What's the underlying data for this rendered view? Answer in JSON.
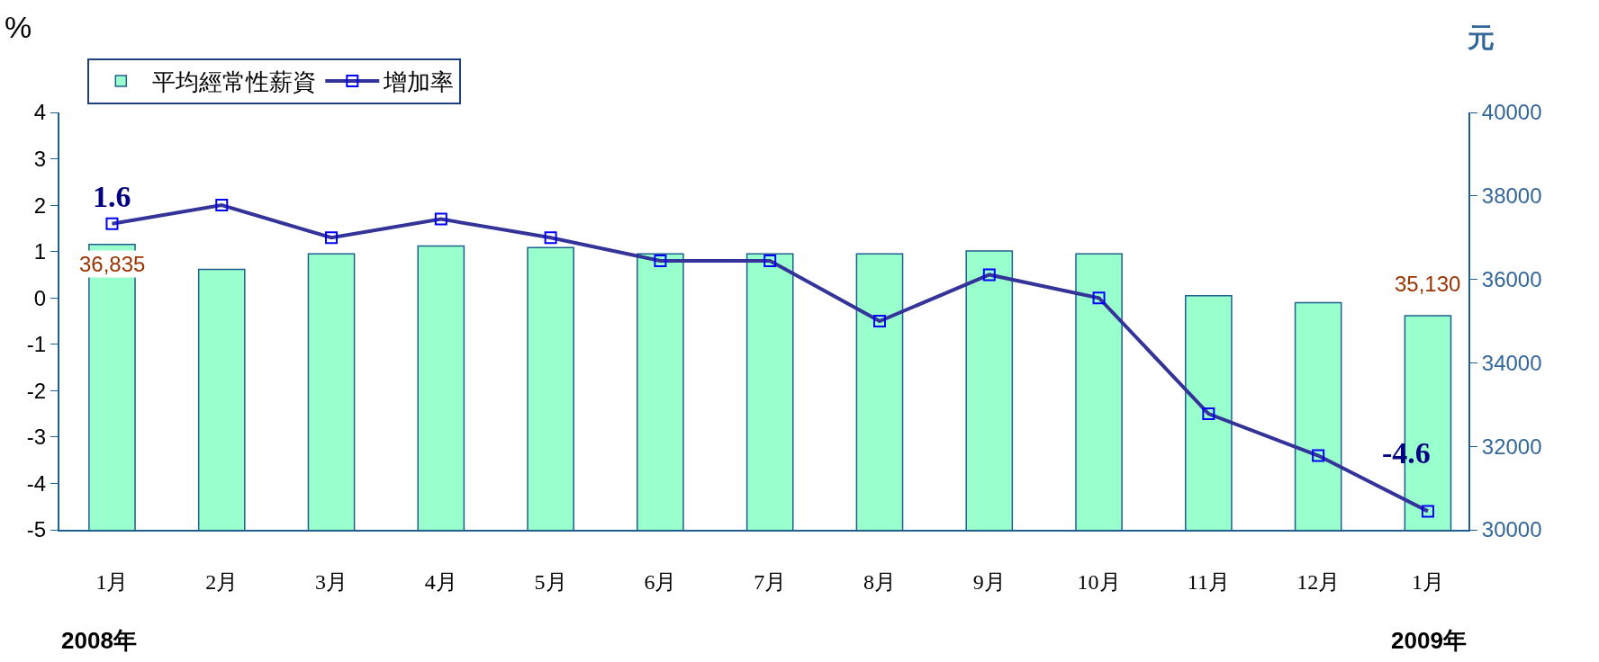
{
  "chart_data": {
    "type": "bar",
    "categories": [
      "1月",
      "2月",
      "3月",
      "4月",
      "5月",
      "6月",
      "7月",
      "8月",
      "9月",
      "10月",
      "11月",
      "12月",
      "1月"
    ],
    "ylabel": "%",
    "y2label": "元",
    "ylim": [
      -5,
      4
    ],
    "yticks": [
      -5,
      -4,
      -3,
      -2,
      -1,
      0,
      1,
      2,
      3,
      4
    ],
    "y2lim": [
      30000,
      40000
    ],
    "y2ticks": [
      30000,
      32000,
      34000,
      36000,
      38000,
      40000
    ],
    "series": [
      {
        "name": "平均經常性薪資",
        "axis": "y2",
        "color": "#99ffcc",
        "values": [
          36835,
          36240,
          36610,
          36800,
          36760,
          36610,
          36610,
          36610,
          36680,
          36610,
          35610,
          35440,
          35130
        ],
        "value_labels": [
          "36,835",
          null,
          null,
          null,
          null,
          null,
          null,
          null,
          null,
          null,
          null,
          null,
          "35,130"
        ]
      },
      {
        "name": "增加率",
        "type": "line",
        "axis": "y",
        "color": "#333399",
        "marker": "square",
        "values": [
          1.6,
          2.0,
          1.3,
          1.7,
          1.3,
          0.8,
          0.8,
          -0.5,
          0.5,
          0.0,
          -2.5,
          -3.4,
          -4.6
        ],
        "value_labels": [
          "1.6",
          null,
          null,
          null,
          null,
          null,
          null,
          null,
          null,
          null,
          null,
          null,
          "-4.6"
        ]
      }
    ],
    "annotations": [
      "2008年",
      "2009年"
    ],
    "legend": "top left"
  }
}
